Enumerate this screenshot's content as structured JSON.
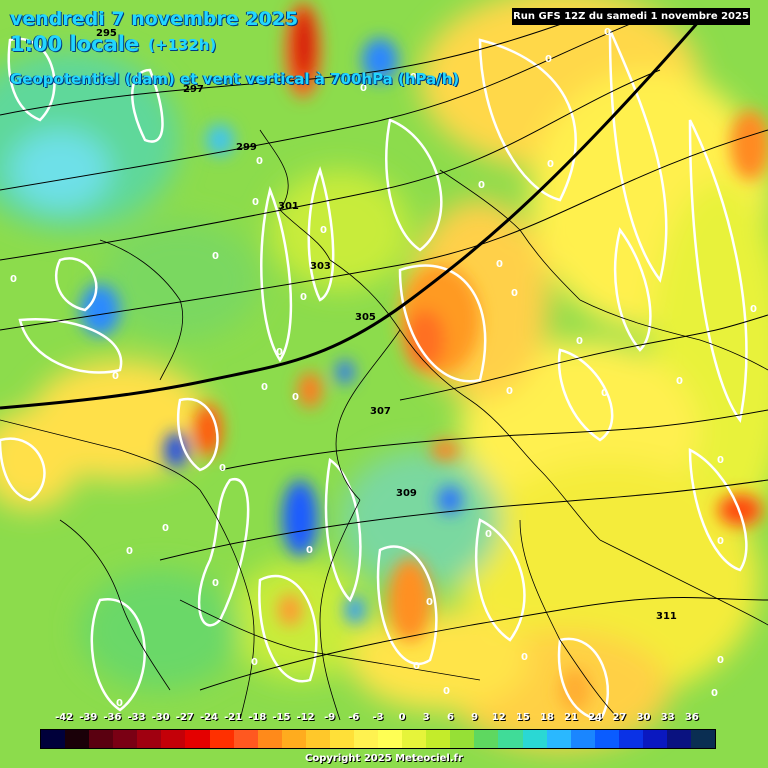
{
  "header": {
    "date": "vendredi 7 novembre 2025",
    "time": "1:00 locale",
    "offset": "(+132h)",
    "parameter": "Geopotentiel (dam) et vent vertical à 700hPa (hPa/h)",
    "run": "Run GFS 12Z du samedi 1 novembre 2025"
  },
  "legend": {
    "labels": [
      "-42",
      "-39",
      "-36",
      "-33",
      "-30",
      "-27",
      "-24",
      "-21",
      "-18",
      "-15",
      "-12",
      "-9",
      "-6",
      "-3",
      "0",
      "3",
      "6",
      "9",
      "12",
      "15",
      "18",
      "21",
      "24",
      "27",
      "30",
      "33",
      "36"
    ],
    "colors": [
      "#00003a",
      "#1a0008",
      "#5a0010",
      "#7a0014",
      "#a00010",
      "#c40008",
      "#e40000",
      "#ff3000",
      "#ff5820",
      "#ff8a1a",
      "#ffac1e",
      "#ffc82a",
      "#ffe038",
      "#fff250",
      "#ffff54",
      "#e6f43a",
      "#c4ec2a",
      "#96e036",
      "#5ed860",
      "#40dc98",
      "#2ad8d4",
      "#2ab8ff",
      "#1a86ff",
      "#0a5cff",
      "#0a32e6",
      "#0a18c0",
      "#0a1280",
      "#0a2e52"
    ]
  },
  "contour_labels": [
    "295",
    "297",
    "299",
    "301",
    "303",
    "305",
    "307",
    "309",
    "311"
  ],
  "zero_labels": [
    "0"
  ],
  "copyright": "Copyright 2025 Meteociel.fr"
}
